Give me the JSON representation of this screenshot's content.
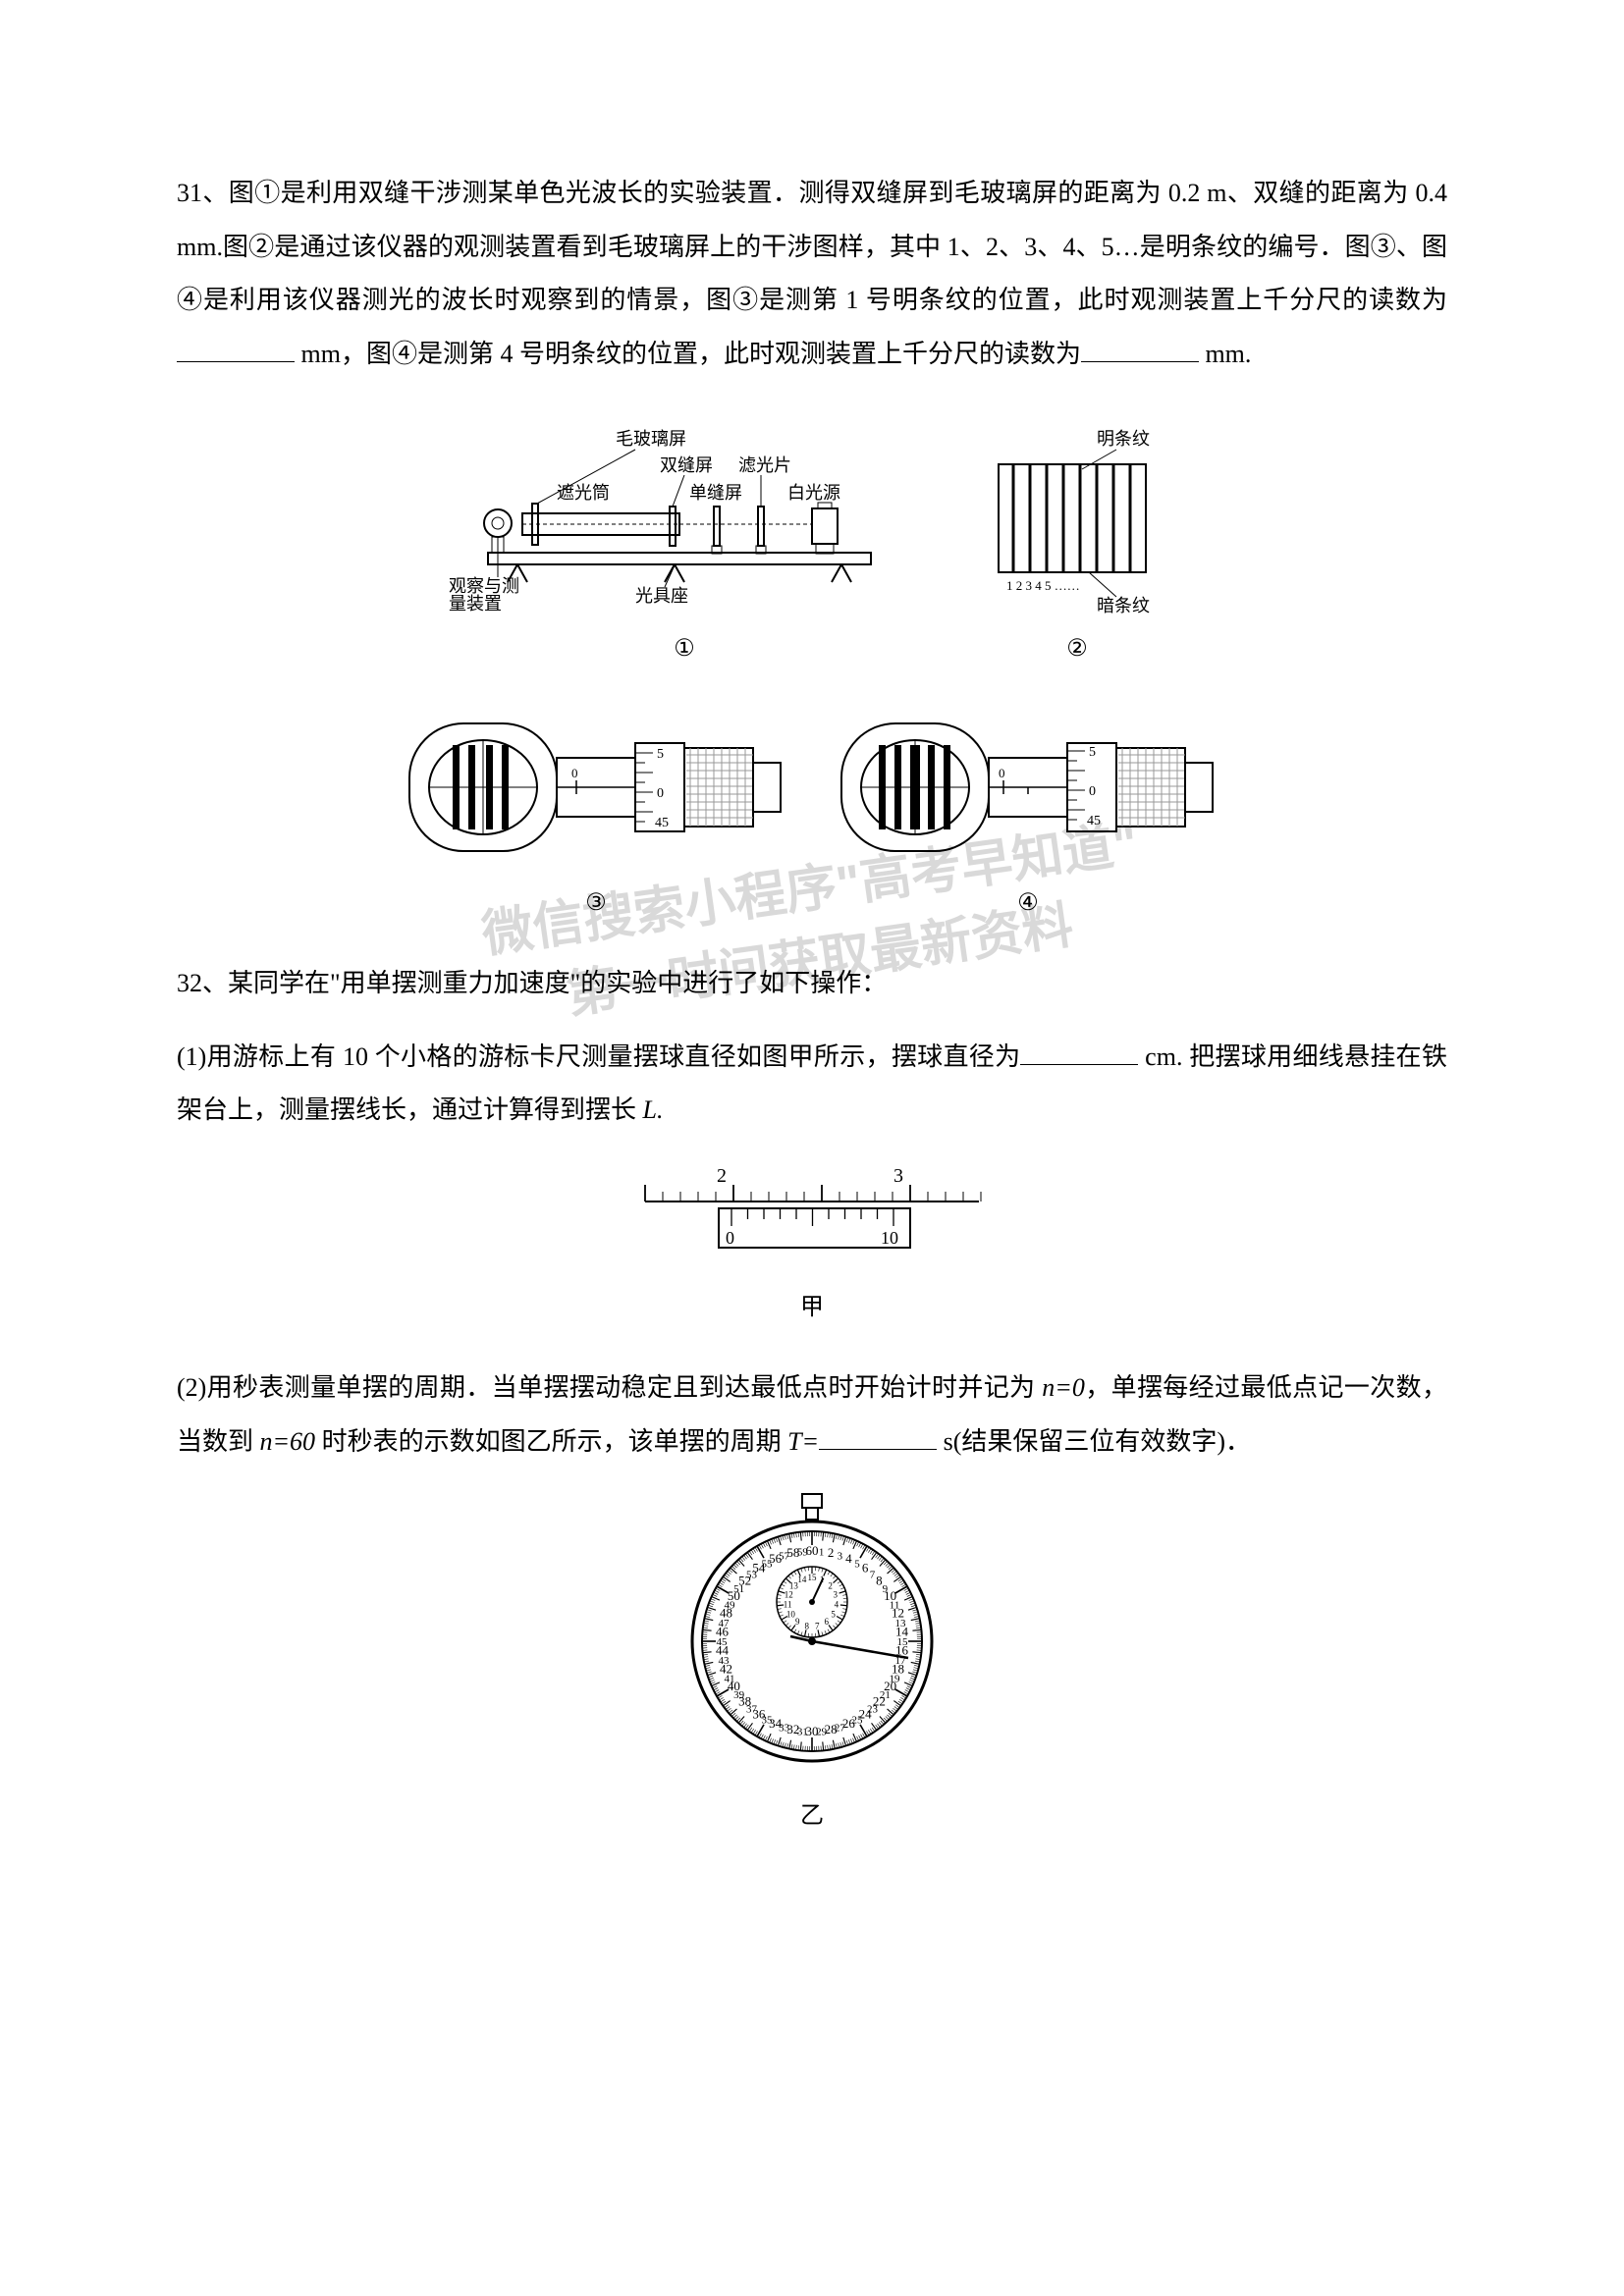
{
  "q31": {
    "number": "31、",
    "text_parts": [
      "图①是利用双缝干涉测某单色光波长的实验装置．测得双缝屏到毛玻璃屏的距离为 0.2 m、双缝的距离为 0.4 mm.图②是通过该仪器的观测装置看到毛玻璃屏上的干涉图样，其中 1、2、3、4、5…是明条纹的编号．图③、图④是利用该仪器测光的波长时观察到的情景，图③是测第 1 号明条纹的位置，此时观测装置上千分尺的读数为",
      " mm，图④是测第 4 号明条纹的位置，此时观测装置上千分尺的读数为",
      " mm."
    ],
    "diagram1": {
      "labels": {
        "ground_glass": "毛玻璃屏",
        "double_slit": "双缝屏",
        "filter": "滤光片",
        "light_tube": "遮光筒",
        "single_slit": "单缝屏",
        "white_light": "白光源",
        "observer": "观察与测量装置",
        "bench": "光具座",
        "bright": "明条纹",
        "dark": "暗条纹",
        "nums": "1 2 3 4 5  ……"
      },
      "fig_labels": [
        "①",
        "②"
      ]
    },
    "diagram2": {
      "scale_top": "0",
      "scale_marks": [
        "5",
        "0",
        "45"
      ],
      "fig_labels": [
        "③",
        "④"
      ],
      "colors": {
        "line": "#000000",
        "hatch": "#888888",
        "bg": "#ffffff"
      }
    }
  },
  "q32": {
    "number": "32、",
    "intro": "某同学在\"用单摆测重力加速度\"的实验中进行了如下操作：",
    "part1": "(1)用游标上有 10 个小格的游标卡尺测量摆球直径如图甲所示，摆球直径为",
    "part1_tail": " cm. 把摆球用细线悬挂在铁架台上，测量摆线长，通过计算得到摆长 ",
    "part1_L": "L.",
    "caliper": {
      "main_labels": [
        "2",
        "3"
      ],
      "vernier_labels": [
        "0",
        "10"
      ],
      "caption": "甲",
      "main_start": 2,
      "main_end": 3,
      "vernier_divisions": 10
    },
    "part2_a": "(2)用秒表测量单摆的周期．当单摆摆动稳定且到达最低点时开始计时并记为 ",
    "part2_n0": "n=0",
    "part2_b": "，单摆每经过最低点记一次数，当数到 ",
    "part2_n60": "n=60",
    "part2_c": " 时秒表的示数如图乙所示，该单摆的周期 ",
    "part2_T": "T=",
    "part2_tail": " s(结果保留三位有效数字)．",
    "stopwatch": {
      "caption": "乙",
      "outer_marks": 60,
      "inner_marks": 15,
      "minute_hand_angle": 25,
      "second_hand_angle": 100
    }
  },
  "watermark": {
    "line1": "微信搜索小程序\"高考早知道\"",
    "line2": "第一时间获取最新资料"
  },
  "style": {
    "page_bg": "#ffffff",
    "text_color": "#000000",
    "body_fontsize": 26,
    "line_height": 2.1
  }
}
